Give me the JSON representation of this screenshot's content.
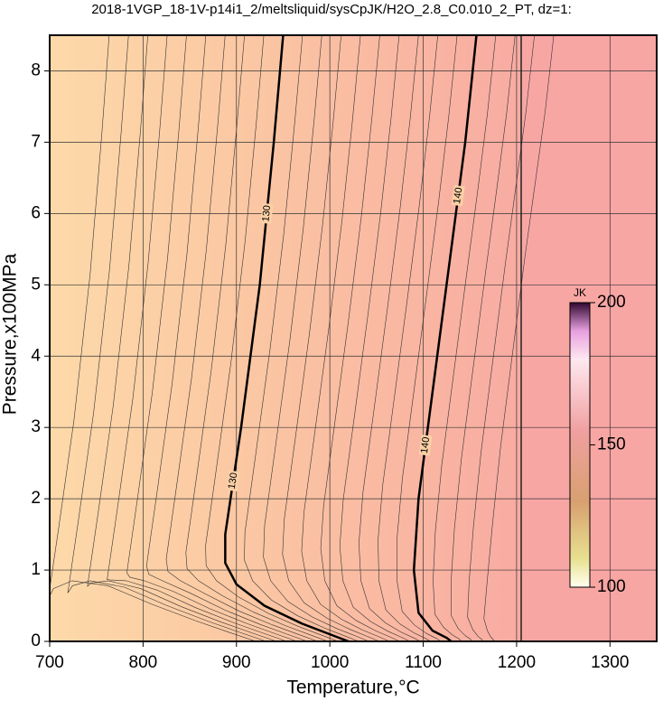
{
  "chart_data": {
    "type": "contour",
    "title": "2018-1VGP_18-1V-p14i1_2/meltsliquid/sysCpJK/H2O_2.8_C0.010_2_PT, dz=1:",
    "xlabel": "Temperature,°C",
    "ylabel": "Pressure,x100MPa",
    "xlim": [
      700,
      1350
    ],
    "ylim": [
      0,
      8.5
    ],
    "xticks": [
      700,
      800,
      900,
      1000,
      1100,
      1200,
      1300
    ],
    "yticks": [
      0,
      1,
      2,
      3,
      4,
      5,
      6,
      7,
      8
    ],
    "grid": true,
    "contours": [
      {
        "level": 130,
        "x": [
          950,
          940,
          925,
          905,
          888,
          888,
          900,
          930,
          970,
          1000,
          1020
        ],
        "y": [
          8.5,
          7,
          5,
          3,
          1.5,
          1.1,
          0.8,
          0.5,
          0.25,
          0.1,
          0
        ]
      },
      {
        "level": 140,
        "x": [
          1157,
          1145,
          1130,
          1110,
          1095,
          1090,
          1095,
          1110,
          1125,
          1130
        ],
        "y": [
          8.5,
          7,
          5.5,
          3.5,
          2,
          1,
          0.4,
          0.15,
          0.05,
          0
        ]
      }
    ],
    "colorbar": {
      "label": "JK",
      "lim": [
        100,
        200
      ],
      "ticks": [
        100,
        150,
        200
      ]
    }
  }
}
